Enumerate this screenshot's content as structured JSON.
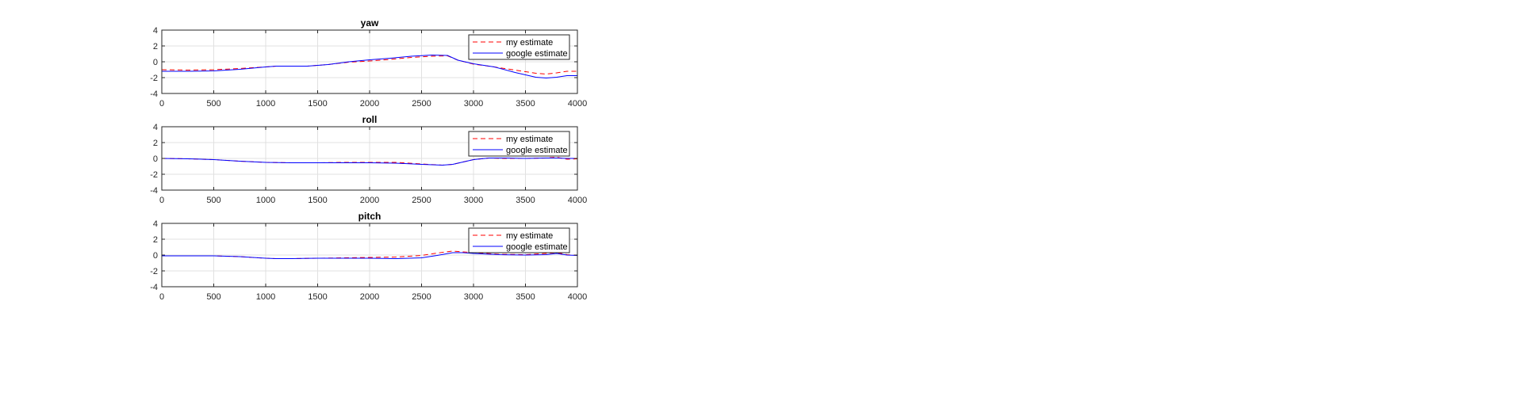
{
  "chart_data": [
    {
      "type": "line",
      "title": "yaw",
      "xlabel": "",
      "ylabel": "",
      "xlim": [
        0,
        4000
      ],
      "ylim": [
        -4,
        4
      ],
      "xticks": [
        0,
        500,
        1000,
        1500,
        2000,
        2500,
        3000,
        3500,
        4000
      ],
      "yticks": [
        -4,
        -2,
        0,
        2,
        4
      ],
      "grid": true,
      "legend": "top-right",
      "series": [
        {
          "name": "my estimate",
          "color": "#ff0000",
          "dash": "dashed",
          "x": [
            0,
            250,
            500,
            750,
            1000,
            1100,
            1250,
            1400,
            1600,
            1800,
            2000,
            2200,
            2400,
            2600,
            2750,
            2850,
            3000,
            3200,
            3400,
            3600,
            3700,
            3800,
            3900,
            4000
          ],
          "y": [
            -1.0,
            -1.05,
            -1.0,
            -0.85,
            -0.65,
            -0.55,
            -0.55,
            -0.55,
            -0.35,
            -0.05,
            0.1,
            0.3,
            0.55,
            0.7,
            0.75,
            0.2,
            -0.3,
            -0.65,
            -1.05,
            -1.45,
            -1.55,
            -1.4,
            -1.2,
            -1.2
          ]
        },
        {
          "name": "google estimate",
          "color": "#0000ff",
          "dash": "solid",
          "x": [
            0,
            250,
            500,
            750,
            1000,
            1100,
            1250,
            1400,
            1600,
            1800,
            2000,
            2200,
            2400,
            2600,
            2750,
            2850,
            3000,
            3200,
            3400,
            3600,
            3700,
            3800,
            3900,
            4000
          ],
          "y": [
            -1.2,
            -1.2,
            -1.15,
            -0.95,
            -0.65,
            -0.55,
            -0.55,
            -0.55,
            -0.35,
            0.0,
            0.25,
            0.45,
            0.7,
            0.85,
            0.8,
            0.2,
            -0.25,
            -0.65,
            -1.35,
            -1.95,
            -2.05,
            -1.95,
            -1.75,
            -1.75
          ]
        }
      ]
    },
    {
      "type": "line",
      "title": "roll",
      "xlabel": "",
      "ylabel": "",
      "xlim": [
        0,
        4000
      ],
      "ylim": [
        -4,
        4
      ],
      "xticks": [
        0,
        500,
        1000,
        1500,
        2000,
        2500,
        3000,
        3500,
        4000
      ],
      "yticks": [
        -4,
        -2,
        0,
        2,
        4
      ],
      "grid": true,
      "legend": "top-right",
      "series": [
        {
          "name": "my estimate",
          "color": "#ff0000",
          "dash": "dashed",
          "x": [
            0,
            250,
            500,
            750,
            1000,
            1250,
            1500,
            1750,
            2000,
            2250,
            2500,
            2700,
            2800,
            2900,
            3000,
            3150,
            3300,
            3500,
            3700,
            3800,
            3900,
            4000
          ],
          "y": [
            0.0,
            -0.05,
            -0.15,
            -0.35,
            -0.5,
            -0.55,
            -0.55,
            -0.5,
            -0.5,
            -0.5,
            -0.7,
            -0.85,
            -0.75,
            -0.45,
            -0.15,
            0.05,
            0.0,
            0.0,
            0.05,
            0.15,
            -0.1,
            -0.05
          ]
        },
        {
          "name": "google estimate",
          "color": "#0000ff",
          "dash": "solid",
          "x": [
            0,
            250,
            500,
            750,
            1000,
            1250,
            1500,
            1750,
            2000,
            2250,
            2500,
            2700,
            2800,
            2900,
            3000,
            3150,
            3300,
            3500,
            3700,
            3800,
            3900,
            4000
          ],
          "y": [
            0.0,
            -0.05,
            -0.15,
            -0.35,
            -0.5,
            -0.55,
            -0.55,
            -0.55,
            -0.55,
            -0.6,
            -0.75,
            -0.85,
            -0.75,
            -0.45,
            -0.15,
            0.05,
            0.05,
            0.0,
            0.05,
            0.05,
            0.0,
            0.0
          ]
        }
      ]
    },
    {
      "type": "line",
      "title": "pitch",
      "xlabel": "",
      "ylabel": "",
      "xlim": [
        0,
        4000
      ],
      "ylim": [
        -4,
        4
      ],
      "xticks": [
        0,
        500,
        1000,
        1500,
        2000,
        2500,
        3000,
        3500,
        4000
      ],
      "yticks": [
        -4,
        -2,
        0,
        2,
        4
      ],
      "grid": true,
      "legend": "top-right",
      "series": [
        {
          "name": "my estimate",
          "color": "#ff0000",
          "dash": "dashed",
          "x": [
            0,
            250,
            500,
            750,
            1000,
            1100,
            1250,
            1500,
            1750,
            2000,
            2250,
            2500,
            2650,
            2800,
            2900,
            3000,
            3250,
            3500,
            3700,
            3800,
            3900,
            4000
          ],
          "y": [
            -0.1,
            -0.1,
            -0.1,
            -0.2,
            -0.4,
            -0.45,
            -0.45,
            -0.4,
            -0.35,
            -0.3,
            -0.25,
            -0.05,
            0.25,
            0.5,
            0.4,
            0.3,
            0.1,
            0.05,
            0.2,
            0.3,
            0.05,
            -0.05
          ]
        },
        {
          "name": "google estimate",
          "color": "#0000ff",
          "dash": "solid",
          "x": [
            0,
            250,
            500,
            750,
            1000,
            1100,
            1250,
            1500,
            1750,
            2000,
            2250,
            2500,
            2650,
            2800,
            2900,
            3000,
            3250,
            3500,
            3700,
            3800,
            3900,
            4000
          ],
          "y": [
            -0.1,
            -0.1,
            -0.1,
            -0.2,
            -0.4,
            -0.45,
            -0.45,
            -0.4,
            -0.4,
            -0.4,
            -0.45,
            -0.35,
            -0.05,
            0.3,
            0.3,
            0.2,
            0.05,
            0.0,
            0.05,
            0.2,
            0.0,
            -0.05
          ]
        }
      ]
    }
  ]
}
